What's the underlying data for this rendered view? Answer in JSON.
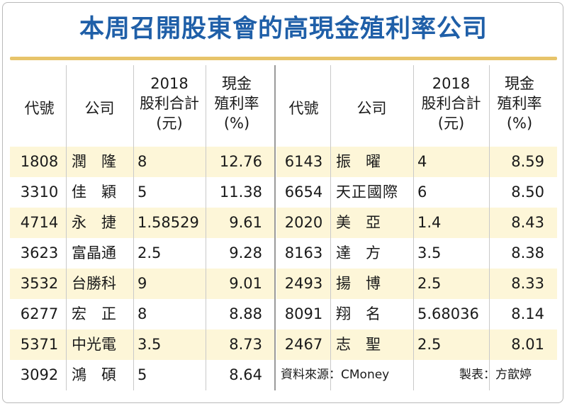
{
  "title": "本周召開股東會的高現金殖利率公司",
  "headers": {
    "code": "代號",
    "company": "公司",
    "dividend": [
      "2018",
      "股利合計",
      "(元)"
    ],
    "yield": [
      "現金",
      "殖利率",
      "(%)"
    ]
  },
  "left_rows": [
    {
      "code": "1808",
      "company": "潤　隆",
      "dividend": "8",
      "yield": "12.76"
    },
    {
      "code": "3310",
      "company": "佳　穎",
      "dividend": "5",
      "yield": "11.38"
    },
    {
      "code": "4714",
      "company": "永　捷",
      "dividend": "1.58529",
      "yield": "9.61"
    },
    {
      "code": "3623",
      "company": "富晶通",
      "dividend": "2.5",
      "yield": "9.28"
    },
    {
      "code": "3532",
      "company": "台勝科",
      "dividend": "9",
      "yield": "9.01"
    },
    {
      "code": "6277",
      "company": "宏　正",
      "dividend": "8",
      "yield": "8.88"
    },
    {
      "code": "5371",
      "company": "中光電",
      "dividend": "3.5",
      "yield": "8.73"
    },
    {
      "code": "3092",
      "company": "鴻　碩",
      "dividend": "5",
      "yield": "8.64"
    }
  ],
  "right_rows": [
    {
      "code": "6143",
      "company": "振　曜",
      "dividend": "4",
      "yield": "8.59"
    },
    {
      "code": "6654",
      "company": "天正國際",
      "dividend": "6",
      "yield": "8.50"
    },
    {
      "code": "2020",
      "company": "美　亞",
      "dividend": "1.4",
      "yield": "8.43"
    },
    {
      "code": "8163",
      "company": "達　方",
      "dividend": "3.5",
      "yield": "8.38"
    },
    {
      "code": "2493",
      "company": "揚　博",
      "dividend": "2.5",
      "yield": "8.33"
    },
    {
      "code": "8091",
      "company": "翔　名",
      "dividend": "5.68036",
      "yield": "8.14"
    },
    {
      "code": "2467",
      "company": "志　聖",
      "dividend": "2.5",
      "yield": "8.01"
    }
  ],
  "source": "資料來源：CMoney",
  "credit": "製表：方歆婷",
  "colors": {
    "title": "#1f5fa8",
    "band": "#fdf6d8",
    "rule": "#e7c46a"
  }
}
